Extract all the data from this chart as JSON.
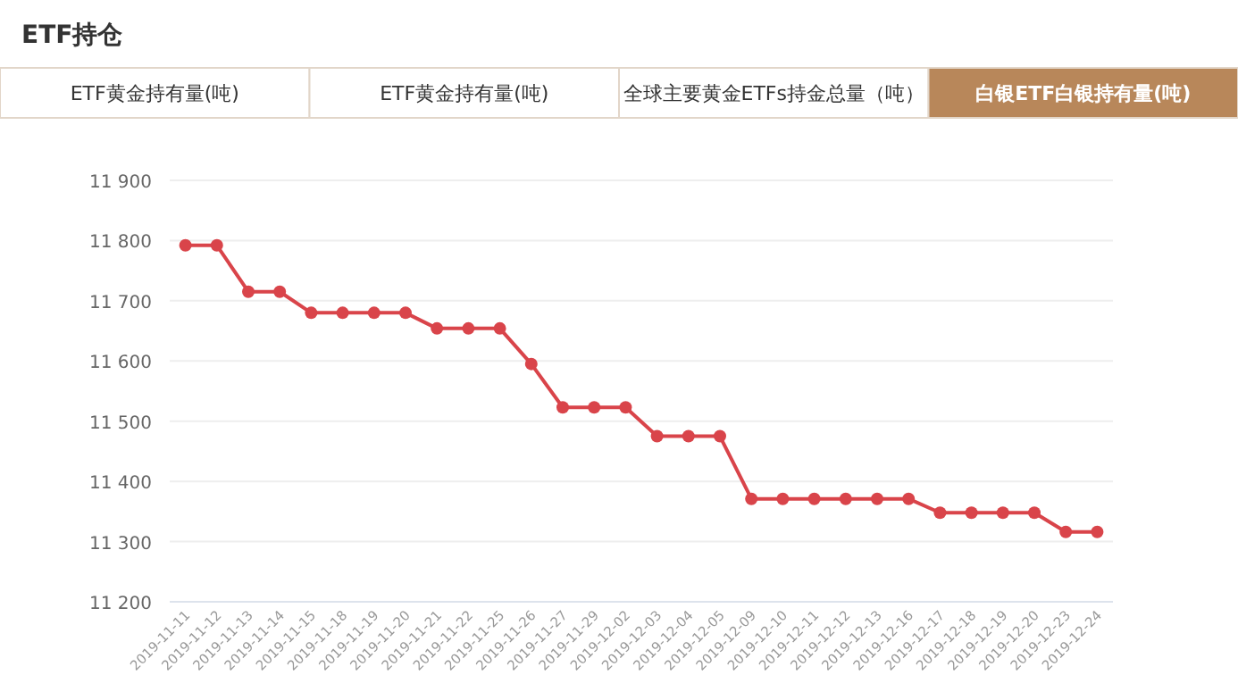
{
  "chart_data": {
    "type": "line",
    "title": "ETF持仓",
    "annotations": [
      "ETF黄金持有量(吨)",
      "ETF黄金持有量(吨)",
      "全球主要黄金ETFs持金总量（吨）",
      "白银ETF白银持有量(吨)"
    ],
    "categories": [
      "2019-11-11",
      "2019-11-12",
      "2019-11-13",
      "2019-11-14",
      "2019-11-15",
      "2019-11-18",
      "2019-11-19",
      "2019-11-20",
      "2019-11-21",
      "2019-11-22",
      "2019-11-25",
      "2019-11-26",
      "2019-11-27",
      "2019-11-29",
      "2019-12-02",
      "2019-12-03",
      "2019-12-04",
      "2019-12-05",
      "2019-12-09",
      "2019-12-10",
      "2019-12-11",
      "2019-12-12",
      "2019-12-13",
      "2019-12-16",
      "2019-12-17",
      "2019-12-18",
      "2019-12-19",
      "2019-12-20",
      "2019-12-23",
      "2019-12-24"
    ],
    "series": [
      {
        "color": "#d9444a",
        "values": [
          11792,
          11792,
          11715,
          11715,
          11680,
          11680,
          11680,
          11680,
          11654,
          11654,
          11654,
          11595,
          11523,
          11523,
          11523,
          11475,
          11475,
          11475,
          11371,
          11371,
          11371,
          11371,
          11371,
          11371,
          11348,
          11348,
          11348,
          11348,
          11316,
          11316
        ]
      }
    ],
    "ylim": [
      11200,
      11900
    ],
    "yticks": [
      {
        "value": 11200,
        "label": "11 200"
      },
      {
        "value": 11300,
        "label": "11 300"
      },
      {
        "value": 11400,
        "label": "11 400"
      },
      {
        "value": 11500,
        "label": "11 500"
      },
      {
        "value": 11600,
        "label": "11 600"
      },
      {
        "value": 11700,
        "label": "11 700"
      },
      {
        "value": 11800,
        "label": "11 800"
      },
      {
        "value": 11900,
        "label": "11 900"
      }
    ],
    "grid": "y",
    "marker": "circle",
    "line_style": "solid"
  }
}
